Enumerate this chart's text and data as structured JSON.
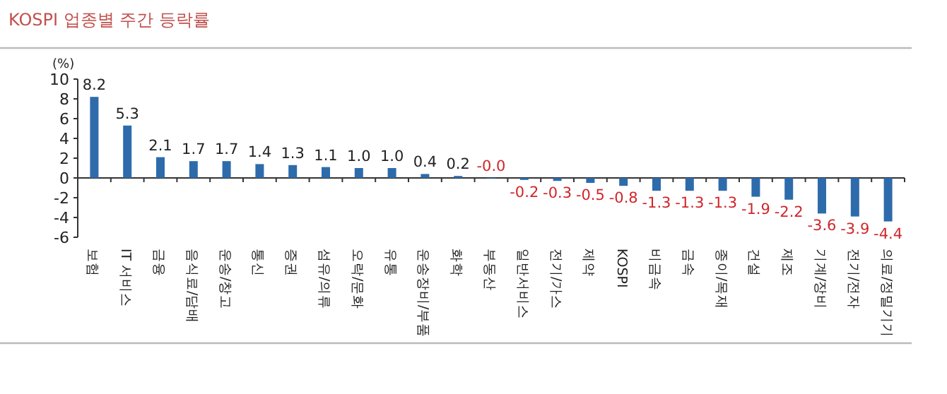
{
  "chart_data": {
    "type": "bar",
    "title": "KOSPI 업종별 주간 등락률",
    "ylabel": "(%)",
    "categories": [
      "보험",
      "IT 서비스",
      "금융",
      "음식료/담배",
      "운송/창고",
      "통신",
      "증권",
      "섬유/의류",
      "오락/문화",
      "유통",
      "운송장비/부품",
      "화학",
      "부동산",
      "일반서비스",
      "전기/가스",
      "제약",
      "KOSPI",
      "비금속",
      "금속",
      "종이/목재",
      "건설",
      "제조",
      "기계/장비",
      "전기/전자",
      "의료/정밀기기"
    ],
    "values": [
      8.2,
      5.3,
      2.1,
      1.7,
      1.7,
      1.4,
      1.3,
      1.1,
      1.0,
      1.0,
      0.4,
      0.2,
      -0.0,
      -0.2,
      -0.3,
      -0.5,
      -0.8,
      -1.3,
      -1.3,
      -1.3,
      -1.9,
      -2.2,
      -3.6,
      -3.9,
      -4.4
    ],
    "value_labels": [
      "8.2",
      "5.3",
      "2.1",
      "1.7",
      "1.7",
      "1.4",
      "1.3",
      "1.1",
      "1.0",
      "1.0",
      "0.4",
      "0.2",
      "-0.0",
      "-0.2",
      "-0.3",
      "-0.5",
      "-0.8",
      "-1.3",
      "-1.3",
      "-1.3",
      "-1.9",
      "-2.2",
      "-3.6",
      "-3.9",
      "-4.4"
    ],
    "color": "#2e6bab",
    "ylim": [
      -6,
      10
    ],
    "yticks": [
      -6,
      -4,
      -2,
      0,
      2,
      4,
      6,
      8,
      10
    ]
  }
}
